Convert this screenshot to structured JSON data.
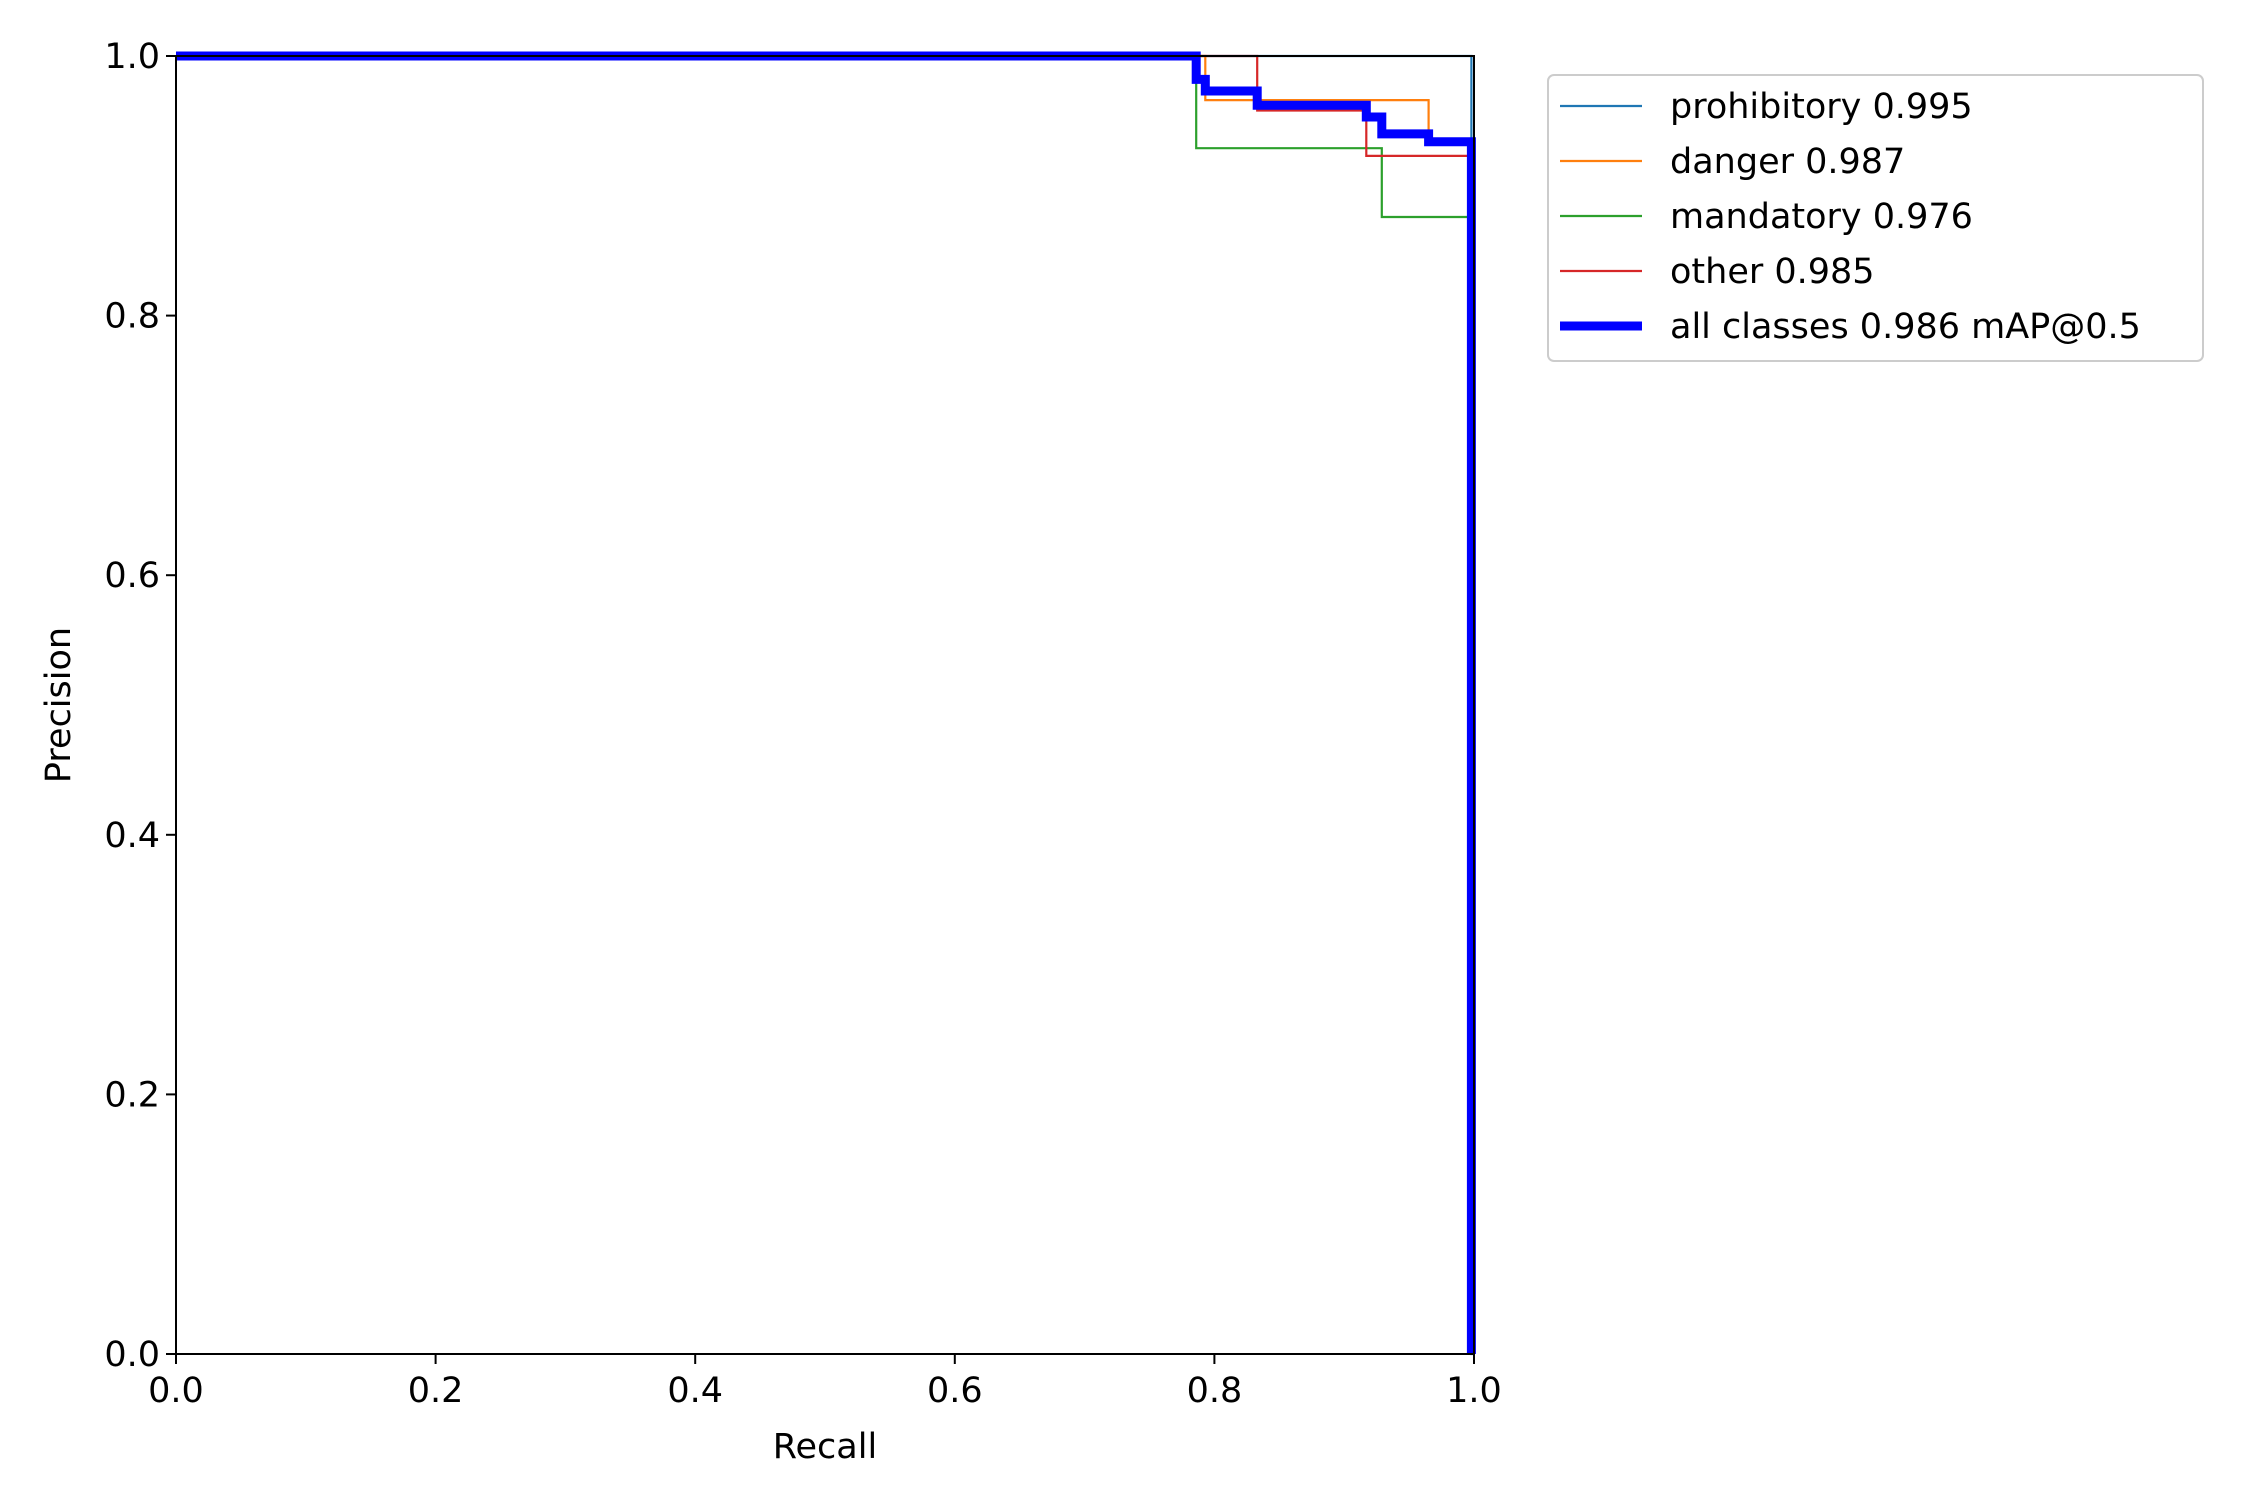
{
  "chart_data": {
    "type": "line",
    "title": "",
    "xlabel": "Recall",
    "ylabel": "Precision",
    "xlim": [
      0,
      1
    ],
    "ylim": [
      0,
      1
    ],
    "grid": false,
    "legend_position": "outside top-right",
    "x_ticks": [
      "0.0",
      "0.2",
      "0.4",
      "0.6",
      "0.8",
      "1.0"
    ],
    "y_ticks": [
      "0.0",
      "0.2",
      "0.4",
      "0.6",
      "0.8",
      "1.0"
    ],
    "series": [
      {
        "name": "prohibitory 0.995",
        "color": "#1f77b4",
        "x": [
          0,
          0.998,
          0.998,
          1.0
        ],
        "y": [
          1.0,
          1.0,
          0.0,
          0.0
        ]
      },
      {
        "name": "danger 0.987",
        "color": "#ff7f0e",
        "x": [
          0,
          0.793,
          0.793,
          0.965,
          0.965,
          0.998,
          0.998
        ],
        "y": [
          1.0,
          1.0,
          0.966,
          0.966,
          0.935,
          0.935,
          0.0
        ]
      },
      {
        "name": "mandatory 0.976",
        "color": "#2ca02c",
        "x": [
          0,
          0.786,
          0.786,
          0.929,
          0.929,
          0.998,
          0.998
        ],
        "y": [
          1.0,
          1.0,
          0.929,
          0.929,
          0.876,
          0.876,
          0.0
        ]
      },
      {
        "name": "other 0.985",
        "color": "#d62728",
        "x": [
          0,
          0.833,
          0.833,
          0.917,
          0.917,
          0.998,
          0.998
        ],
        "y": [
          1.0,
          1.0,
          0.958,
          0.958,
          0.923,
          0.923,
          0.0
        ]
      },
      {
        "name": "all classes 0.986 mAP@0.5",
        "color": "#0000ff",
        "x": [
          0,
          0.786,
          0.786,
          0.793,
          0.793,
          0.833,
          0.833,
          0.917,
          0.917,
          0.929,
          0.929,
          0.965,
          0.965,
          0.998,
          0.998
        ],
        "y": [
          1.0,
          1.0,
          0.982,
          0.982,
          0.973,
          0.973,
          0.962,
          0.962,
          0.953,
          0.953,
          0.94,
          0.94,
          0.934,
          0.934,
          0.0
        ]
      }
    ]
  }
}
